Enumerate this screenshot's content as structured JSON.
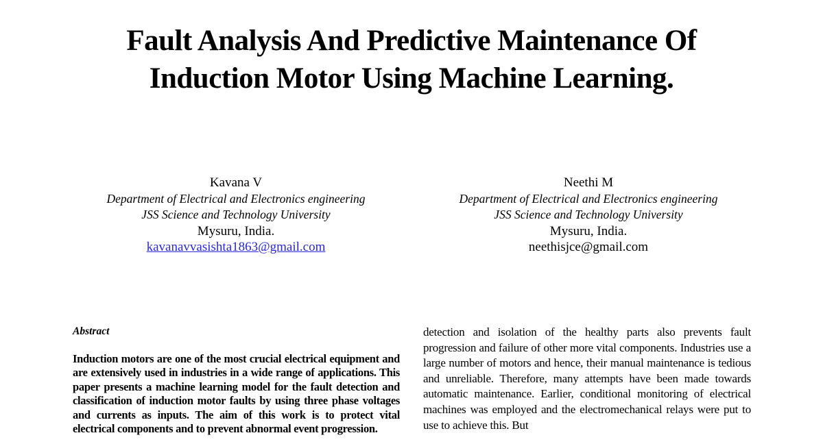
{
  "title": {
    "line1": "Fault Analysis And Predictive Maintenance Of",
    "line2": "Induction Motor Using Machine Learning."
  },
  "authors": [
    {
      "name": "Kavana V",
      "department": "Department of Electrical and Electronics engineering",
      "university": "JSS Science and Technology University",
      "location": "Mysuru, India.",
      "email": "kavanavvasishta1863@gmail.com"
    },
    {
      "name": "Neethi M",
      "department": "Department of Electrical and Electronics engineering",
      "university": "JSS Science and Technology University",
      "location": "Mysuru, India.",
      "email": "neethisjce@gmail.com"
    }
  ],
  "left_column": {
    "heading": "Abstract",
    "paragraph": "Induction motors are one of the most crucial electrical equipment and are extensively used in industries in a wide range of applications. This paper presents a machine learning model for the fault detection and classification of induction motor faults by using three phase voltages and currents as inputs. The aim of this work is to protect vital electrical components and to prevent abnormal event progression."
  },
  "right_column": {
    "paragraph": "detection and isolation of the healthy parts also prevents fault progression and failure of other more vital components. Industries use a large number of motors and hence, their manual maintenance is tedious and unreliable. Therefore, many attempts have been made towards automatic maintenance. Earlier, conditional monitoring of electrical machines was employed and the electromechanical relays were put to use to achieve this. But"
  },
  "colors": {
    "link_blue": "#2828d7",
    "text": "#000000",
    "background": "#ffffff"
  }
}
